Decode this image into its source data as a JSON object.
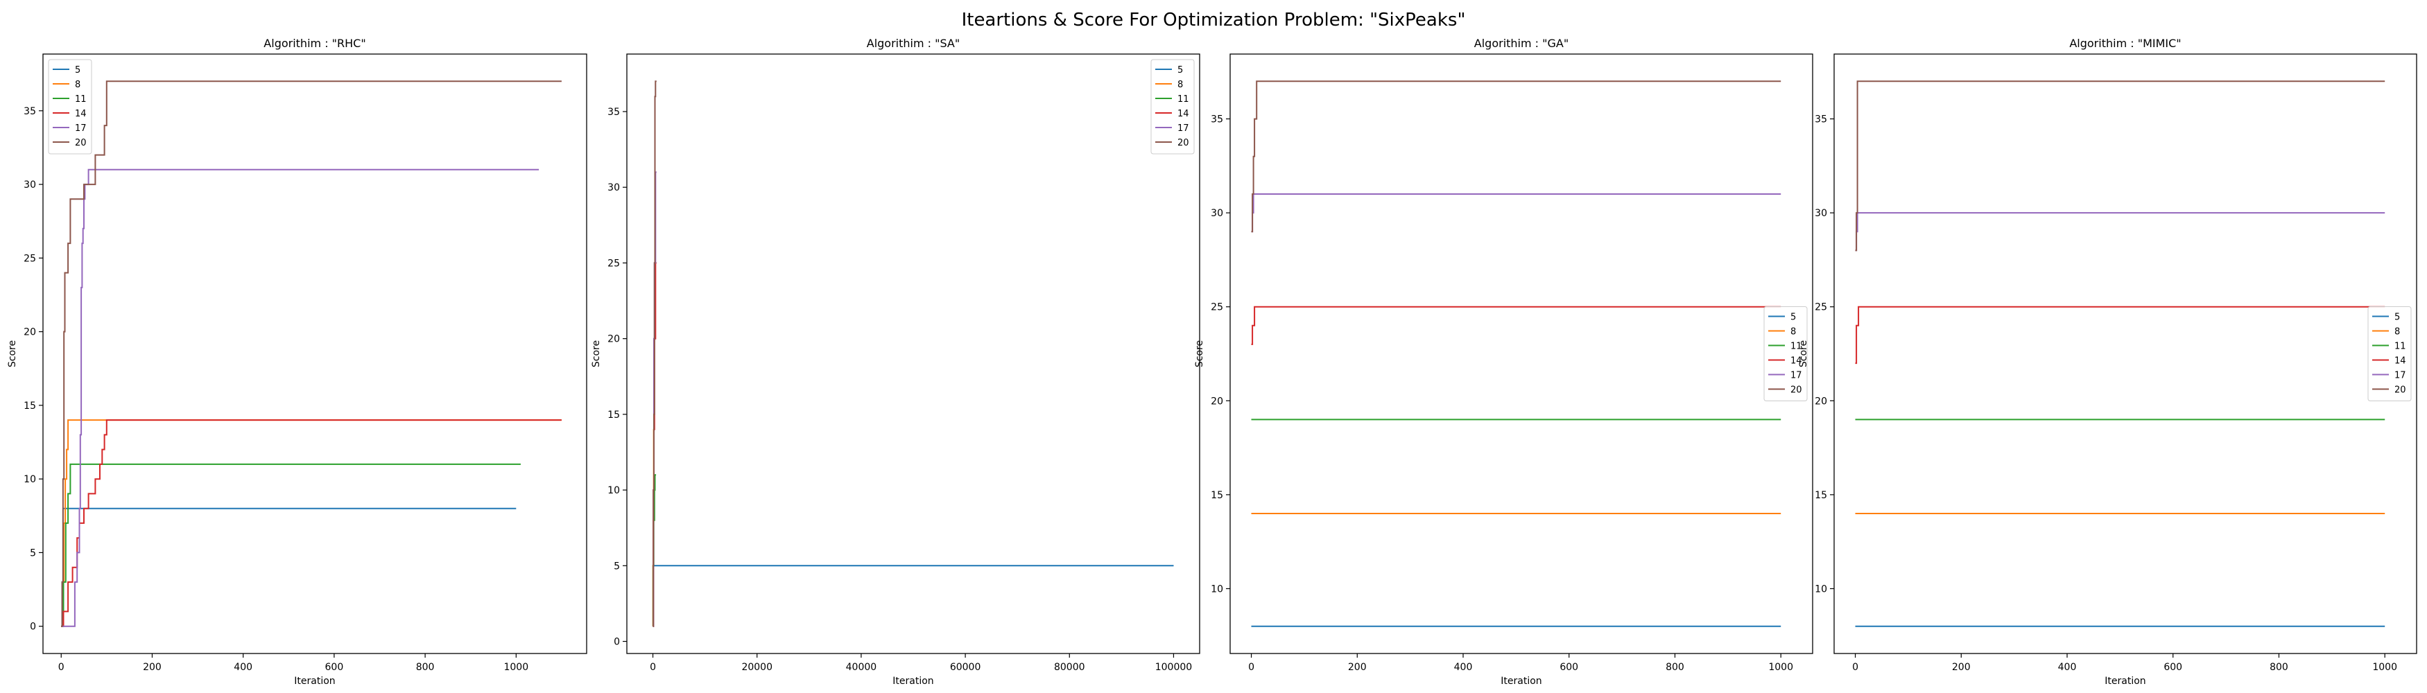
{
  "figure": {
    "suptitle": "Iteartions & Score For Optimization Problem: \"SixPeaks\"",
    "colors": {
      "5": "#1f77b4",
      "8": "#ff7f0e",
      "11": "#2ca02c",
      "14": "#d62728",
      "17": "#9467bd",
      "20": "#8c564b"
    }
  },
  "chart_data": [
    {
      "type": "line",
      "title": "Algorithim : \"RHC\"",
      "xlabel": "Iteration",
      "ylabel": "Score",
      "xlim": [
        -40,
        1155
      ],
      "ylim": [
        -1.85,
        38.85
      ],
      "xticks": [
        0,
        200,
        400,
        600,
        800,
        1000
      ],
      "yticks": [
        0,
        5,
        10,
        15,
        20,
        25,
        30,
        35
      ],
      "legend": "upper left",
      "series": [
        {
          "name": "5",
          "color": "#1f77b4",
          "step": true,
          "x": [
            0,
            2,
            4,
            1000
          ],
          "y": [
            0,
            3,
            8,
            8
          ]
        },
        {
          "name": "8",
          "color": "#ff7f0e",
          "step": true,
          "x": [
            0,
            3,
            6,
            9,
            12,
            15,
            1100
          ],
          "y": [
            0,
            3,
            7,
            10,
            12,
            14,
            14
          ]
        },
        {
          "name": "11",
          "color": "#2ca02c",
          "step": true,
          "x": [
            0,
            5,
            10,
            15,
            20,
            1010
          ],
          "y": [
            0,
            3,
            7,
            9,
            11,
            11
          ]
        },
        {
          "name": "14",
          "color": "#d62728",
          "step": true,
          "x": [
            0,
            5,
            15,
            25,
            35,
            40,
            50,
            60,
            75,
            85,
            90,
            95,
            100,
            1100
          ],
          "y": [
            0,
            1,
            3,
            4,
            6,
            7,
            8,
            9,
            10,
            11,
            12,
            13,
            14,
            14
          ]
        },
        {
          "name": "17",
          "color": "#9467bd",
          "step": true,
          "x": [
            0,
            30,
            35,
            40,
            42,
            44,
            46,
            48,
            50,
            52,
            54,
            60,
            1050
          ],
          "y": [
            0,
            3,
            5,
            8,
            13,
            23,
            26,
            27,
            29,
            30,
            30,
            31,
            31
          ]
        },
        {
          "name": "20",
          "color": "#8c564b",
          "step": true,
          "x": [
            0,
            2,
            4,
            6,
            8,
            10,
            15,
            20,
            25,
            30,
            35,
            40,
            50,
            60,
            75,
            80,
            95,
            100,
            1100
          ],
          "y": [
            0,
            3,
            10,
            20,
            24,
            24,
            26,
            29,
            29,
            29,
            29,
            29,
            30,
            30,
            32,
            32,
            34,
            37,
            37
          ]
        }
      ]
    },
    {
      "type": "line",
      "title": "Algorithim : \"SA\"",
      "xlabel": "Iteration",
      "ylabel": "Score",
      "xlim": [
        -5000,
        105000
      ],
      "ylim": [
        -0.8,
        38.8
      ],
      "xticks": [
        0,
        20000,
        40000,
        60000,
        80000,
        100000
      ],
      "yticks": [
        0,
        5,
        10,
        15,
        20,
        25,
        30,
        35
      ],
      "legend": "upper right",
      "series": [
        {
          "name": "5",
          "color": "#1f77b4",
          "step": true,
          "x": [
            0,
            100000
          ],
          "y": [
            5,
            5
          ]
        },
        {
          "name": "8",
          "color": "#ff7f0e",
          "step": true,
          "x": [
            0,
            20,
            60,
            100,
            150,
            200
          ],
          "y": [
            1,
            5,
            8,
            10,
            14,
            14
          ]
        },
        {
          "name": "11",
          "color": "#2ca02c",
          "step": true,
          "x": [
            0,
            50,
            150,
            300,
            400,
            600
          ],
          "y": [
            1,
            5,
            8,
            10,
            11,
            11
          ]
        },
        {
          "name": "14",
          "color": "#d62728",
          "step": true,
          "x": [
            0,
            100,
            200,
            300,
            500,
            700
          ],
          "y": [
            1,
            10,
            14,
            20,
            25,
            25
          ]
        },
        {
          "name": "17",
          "color": "#9467bd",
          "step": true,
          "x": [
            0,
            100,
            200,
            300,
            500,
            700
          ],
          "y": [
            1,
            10,
            20,
            25,
            31,
            31
          ]
        },
        {
          "name": "20",
          "color": "#8c564b",
          "step": true,
          "x": [
            0,
            100,
            200,
            300,
            400,
            500,
            700
          ],
          "y": [
            1,
            10,
            15,
            25,
            36,
            37,
            37
          ]
        }
      ]
    },
    {
      "type": "line",
      "title": "Algorithim : \"GA\"",
      "xlabel": "Iteration",
      "ylabel": "Score",
      "xlim": [
        -40,
        1060
      ],
      "ylim": [
        6.55,
        38.45
      ],
      "xticks": [
        0,
        200,
        400,
        600,
        800,
        1000
      ],
      "yticks": [
        10,
        15,
        20,
        25,
        30,
        35
      ],
      "legend": "center right",
      "series": [
        {
          "name": "5",
          "color": "#1f77b4",
          "step": true,
          "x": [
            0,
            1000
          ],
          "y": [
            8,
            8
          ]
        },
        {
          "name": "8",
          "color": "#ff7f0e",
          "step": true,
          "x": [
            0,
            1000
          ],
          "y": [
            14,
            14
          ]
        },
        {
          "name": "11",
          "color": "#2ca02c",
          "step": true,
          "x": [
            0,
            1000
          ],
          "y": [
            19,
            19
          ]
        },
        {
          "name": "14",
          "color": "#d62728",
          "step": true,
          "x": [
            0,
            2,
            6,
            1000
          ],
          "y": [
            23,
            24,
            25,
            25
          ]
        },
        {
          "name": "17",
          "color": "#9467bd",
          "step": true,
          "x": [
            0,
            2,
            4,
            1000
          ],
          "y": [
            29,
            30,
            31,
            31
          ]
        },
        {
          "name": "20",
          "color": "#8c564b",
          "step": true,
          "x": [
            0,
            2,
            4,
            6,
            10,
            1000
          ],
          "y": [
            29,
            31,
            33,
            35,
            37,
            37
          ]
        }
      ]
    },
    {
      "type": "line",
      "title": "Algorithim : \"MIMIC\"",
      "xlabel": "Iteration",
      "ylabel": "Score",
      "xlim": [
        -40,
        1060
      ],
      "ylim": [
        6.55,
        38.45
      ],
      "xticks": [
        0,
        200,
        400,
        600,
        800,
        1000
      ],
      "yticks": [
        10,
        15,
        20,
        25,
        30,
        35
      ],
      "legend": "center right",
      "series": [
        {
          "name": "5",
          "color": "#1f77b4",
          "step": true,
          "x": [
            0,
            1000
          ],
          "y": [
            8,
            8
          ]
        },
        {
          "name": "8",
          "color": "#ff7f0e",
          "step": true,
          "x": [
            0,
            1000
          ],
          "y": [
            14,
            14
          ]
        },
        {
          "name": "11",
          "color": "#2ca02c",
          "step": true,
          "x": [
            0,
            1000
          ],
          "y": [
            19,
            19
          ]
        },
        {
          "name": "14",
          "color": "#d62728",
          "step": true,
          "x": [
            0,
            2,
            6,
            1000
          ],
          "y": [
            22,
            24,
            25,
            25
          ]
        },
        {
          "name": "17",
          "color": "#9467bd",
          "step": true,
          "x": [
            0,
            2,
            4,
            1000
          ],
          "y": [
            28,
            29,
            30,
            30
          ]
        },
        {
          "name": "20",
          "color": "#8c564b",
          "step": true,
          "x": [
            0,
            2,
            4,
            1000
          ],
          "y": [
            28,
            30,
            37,
            37
          ]
        }
      ]
    }
  ]
}
